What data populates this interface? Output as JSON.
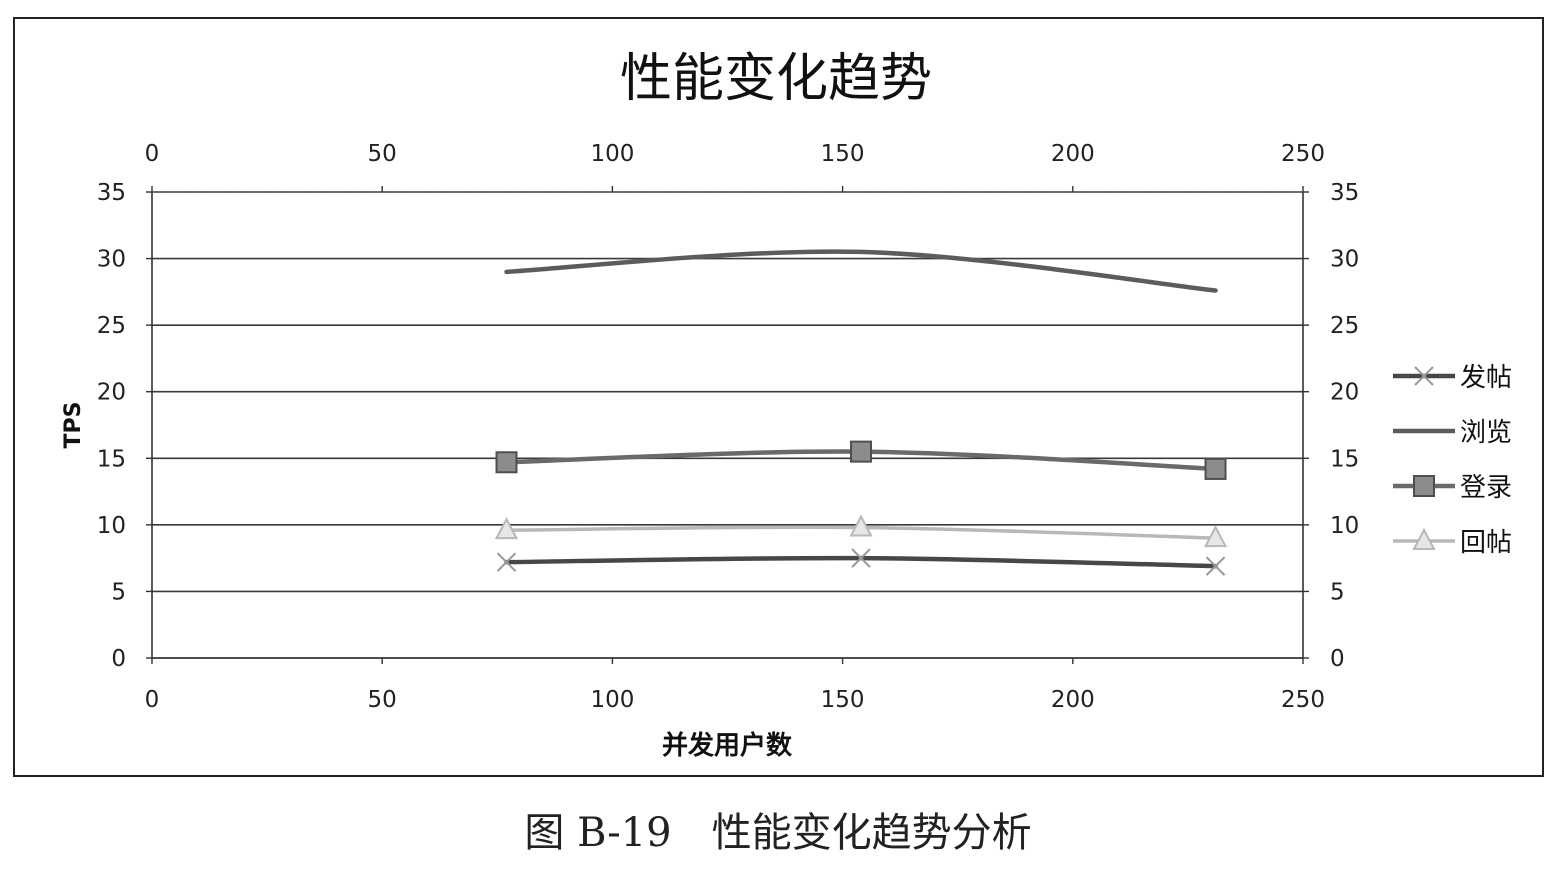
{
  "chart_data": {
    "type": "line",
    "title": "性能变化趋势",
    "xlabel": "并发用户数",
    "ylabel": "TPS",
    "xlim": [
      0,
      250
    ],
    "ylim": [
      0,
      35
    ],
    "x2lim": [
      0,
      250
    ],
    "y2lim": [
      0,
      35
    ],
    "x_ticks": [
      0,
      50,
      100,
      150,
      200,
      250
    ],
    "y_ticks": [
      0,
      5,
      10,
      15,
      20,
      25,
      30,
      35
    ],
    "grid": "horizontal",
    "legend": "right",
    "x": [
      77,
      154,
      231
    ],
    "series": [
      {
        "name": "发帖",
        "values": [
          7.2,
          7.5,
          6.9
        ],
        "marker": "x",
        "color": "#474747"
      },
      {
        "name": "浏览",
        "values": [
          29.0,
          30.5,
          27.6
        ],
        "marker": "none",
        "color": "#5c5c5c"
      },
      {
        "name": "登录",
        "values": [
          14.7,
          15.5,
          14.2
        ],
        "marker": "square",
        "color": "#6a6a6a"
      },
      {
        "name": "回帖",
        "values": [
          9.6,
          9.8,
          9.0
        ],
        "marker": "triangle",
        "color": "#b8b8b8"
      }
    ]
  },
  "caption": "图 B-19　性能变化趋势分析"
}
